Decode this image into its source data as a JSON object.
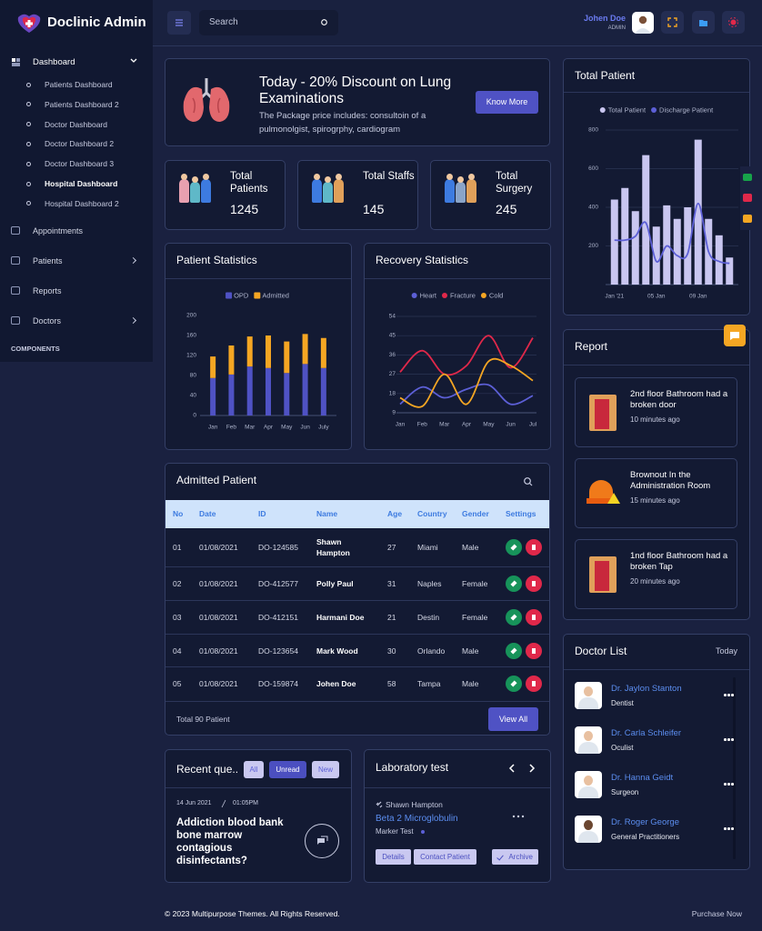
{
  "sidebar": {
    "brand": "Doclinic Admin",
    "dashboard": "Dashboard",
    "dashboard_items": [
      "Patients Dashboard",
      "Patients Dashboard 2",
      "Doctor Dashboard",
      "Doctor Dashboard 2",
      "Doctor Dashboard 3",
      "Hospital Dashboard",
      "Hospital Dashboard 2"
    ],
    "menu": [
      "Appointments",
      "Patients",
      "Reports",
      "Doctors"
    ],
    "section": "COMPONENTS"
  },
  "header": {
    "search_placeholder": "Search",
    "user_name": "Johen Doe",
    "user_role": "ADMIN"
  },
  "promo": {
    "title": "Today - 20% Discount on Lung Examinations",
    "text": "The Package price includes: consultoin of a pulmonolgist, spirogrphy, cardiogram",
    "button": "Know More"
  },
  "stats": [
    {
      "label": "Total Patients",
      "value": 1245
    },
    {
      "label": "Total Staffs",
      "value": 145
    },
    {
      "label": "Total Surgery",
      "value": 245
    }
  ],
  "chart_data": [
    {
      "type": "bar",
      "title": "Patient Statistics",
      "stacked": true,
      "categories": [
        "Jan",
        "Feb",
        "Mar",
        "Apr",
        "May",
        "Jun",
        "July"
      ],
      "series": [
        {
          "name": "OPD",
          "color": "#4f52c4",
          "values": [
            75,
            82,
            98,
            95,
            85,
            103,
            95
          ]
        },
        {
          "name": "Admitted",
          "color": "#f5a623",
          "values": [
            43,
            58,
            60,
            65,
            63,
            60,
            60
          ]
        }
      ],
      "ylim": [
        0,
        200
      ],
      "yticks": [
        0,
        40,
        80,
        120,
        160,
        200
      ],
      "grid": false,
      "legend": "top"
    },
    {
      "type": "line",
      "title": "Recovery Statistics",
      "smooth": true,
      "categories": [
        "Jan",
        "Feb",
        "Mar",
        "Apr",
        "May",
        "Jun",
        "Jul"
      ],
      "series": [
        {
          "name": "Heart",
          "color": "#5c5fd6",
          "values": [
            13,
            21,
            16,
            20,
            22,
            13,
            17
          ]
        },
        {
          "name": "Fracture",
          "color": "#e0284a",
          "values": [
            28,
            38,
            27,
            31,
            45,
            30,
            44
          ]
        },
        {
          "name": "Cold",
          "color": "#f5a623",
          "values": [
            16,
            12,
            27,
            13,
            33,
            31,
            24
          ]
        }
      ],
      "ylim": [
        9,
        54
      ],
      "yticks": [
        9,
        18,
        27,
        36,
        45,
        54
      ],
      "grid": true,
      "legend": "top"
    },
    {
      "type": "bar",
      "title": "Total Patient",
      "smooth": true,
      "categories": [
        "Jan '21",
        null,
        null,
        null,
        "05 Jan",
        null,
        null,
        null,
        "09 Jan",
        null,
        null,
        null
      ],
      "series": [
        {
          "name": "Total Patient",
          "color": "#c9c6f0",
          "values": [
            440,
            500,
            380,
            670,
            300,
            410,
            340,
            400,
            750,
            340,
            255,
            140
          ]
        },
        {
          "name": "Discharge Patient",
          "type": "line",
          "color": "#5c5fd6",
          "values": [
            230,
            230,
            250,
            320,
            120,
            200,
            150,
            160,
            420,
            170,
            120,
            110
          ]
        }
      ],
      "ylim": [
        0,
        800
      ],
      "yticks": [
        200,
        400,
        600,
        800
      ],
      "grid": true,
      "legend": "top"
    }
  ],
  "admitted": {
    "title": "Admitted Patient",
    "columns": [
      "No",
      "Date",
      "ID",
      "Name",
      "Age",
      "Country",
      "Gender",
      "Settings"
    ],
    "rows": [
      [
        "01",
        "01/08/2021",
        "DO-124585",
        "Shawn Hampton",
        27,
        "Miami",
        "Male"
      ],
      [
        "02",
        "01/08/2021",
        "DO-412577",
        "Polly Paul",
        31,
        "Naples",
        "Female"
      ],
      [
        "03",
        "01/08/2021",
        "DO-412151",
        "Harmani Doe",
        21,
        "Destin",
        "Female"
      ],
      [
        "04",
        "01/08/2021",
        "DO-123654",
        "Mark Wood",
        30,
        "Orlando",
        "Male"
      ],
      [
        "05",
        "01/08/2021",
        "DO-159874",
        "Johen Doe",
        58,
        "Tampa",
        "Male"
      ]
    ],
    "total": "Total 90 Patient",
    "button": "View All"
  },
  "report": {
    "title": "Report",
    "items": [
      {
        "text": "2nd floor Bathroom had a broken door",
        "time": "10 minutes ago"
      },
      {
        "text": "Brownout In the Administration Room",
        "time": "15 minutes ago"
      },
      {
        "text": "1nd floor Bathroom had a broken Tap",
        "time": "20 minutes ago"
      }
    ]
  },
  "doctors": {
    "title": "Doctor List",
    "filter": "Today",
    "items": [
      {
        "name": "Dr. Jaylon Stanton",
        "specialty": "Dentist"
      },
      {
        "name": "Dr. Carla Schleifer",
        "specialty": "Oculist"
      },
      {
        "name": "Dr. Hanna Geidt",
        "specialty": "Surgeon"
      },
      {
        "name": "Dr. Roger George",
        "specialty": "General Practitioners"
      }
    ]
  },
  "recent": {
    "title": "Recent que..",
    "tabs": [
      "All",
      "Unread",
      "New"
    ],
    "date": "14 Jun 2021",
    "time": "01:05PM",
    "text": "Addiction blood bank bone marrow contagious disinfectants?"
  },
  "lab": {
    "title": "Laboratory test",
    "patient": "Shawn Hampton",
    "test": "Beta 2 Microglobulin",
    "label": "Marker Test",
    "buttons": [
      "Details",
      "Contact Patient",
      "Archive"
    ]
  },
  "footer": {
    "copyright": "© 2023 Multipurpose Themes. All Rights Reserved.",
    "link": "Purchase Now"
  }
}
